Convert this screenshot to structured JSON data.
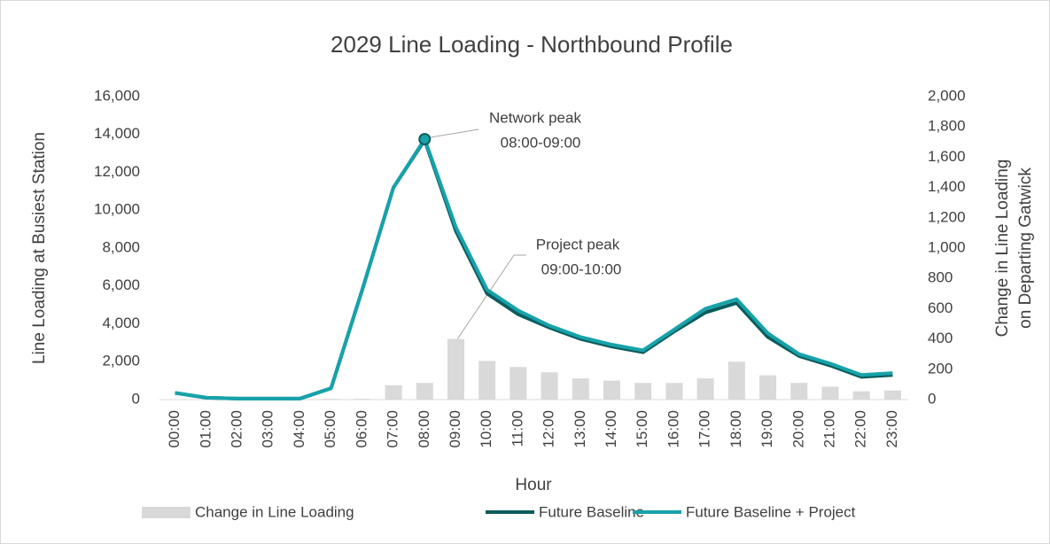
{
  "chart_data": {
    "type": "combo",
    "title": "2029 Line Loading - Northbound Profile",
    "x_label": "Hour",
    "y_label": "Line Loading at Busiest Station",
    "y2_label": [
      "Change in Line Loading",
      "on Departing  Gatwick"
    ],
    "categories": [
      "00:00",
      "01:00",
      "02:00",
      "03:00",
      "04:00",
      "05:00",
      "06:00",
      "07:00",
      "08:00",
      "09:00",
      "10:00",
      "11:00",
      "12:00",
      "13:00",
      "14:00",
      "15:00",
      "16:00",
      "17:00",
      "18:00",
      "19:00",
      "20:00",
      "21:00",
      "22:00",
      "23:00"
    ],
    "series": [
      {
        "name": "Change in Line Loading",
        "type": "bar",
        "axis": "y2",
        "color": "#d9d9d9",
        "values": [
          0,
          0,
          0,
          0,
          0,
          5,
          5,
          95,
          110,
          400,
          255,
          215,
          180,
          140,
          125,
          110,
          110,
          140,
          250,
          160,
          110,
          85,
          55,
          60
        ]
      },
      {
        "name": "Future Baseline",
        "type": "line",
        "axis": "y",
        "color": "#0b5c5c",
        "values": [
          350,
          100,
          50,
          50,
          50,
          600,
          5800,
          11200,
          13700,
          8900,
          5600,
          4500,
          3800,
          3200,
          2800,
          2500,
          3600,
          4600,
          5100,
          3300,
          2300,
          1800,
          1200,
          1300
        ]
      },
      {
        "name": "Future Baseline + Project",
        "type": "line",
        "axis": "y",
        "color": "#17a2aa",
        "values": [
          350,
          100,
          50,
          50,
          50,
          600,
          5800,
          11200,
          13750,
          9100,
          5800,
          4700,
          3900,
          3300,
          2900,
          2600,
          3700,
          4800,
          5300,
          3500,
          2400,
          1900,
          1300,
          1400
        ]
      }
    ],
    "ylim": [
      0,
      16000
    ],
    "yticks": [
      0,
      {
        "value": 2000,
        "label": "2,000"
      },
      {
        "value": 4000,
        "label": "4,000"
      },
      {
        "value": 6000,
        "label": "6,000"
      },
      {
        "value": 8000,
        "label": "8,000"
      },
      {
        "value": 10000,
        "label": "10,000"
      },
      {
        "value": 12000,
        "label": "12,000"
      },
      {
        "value": 14000,
        "label": "14,000"
      },
      {
        "value": 16000,
        "label": "16,000"
      }
    ],
    "y2lim": [
      0,
      2000
    ],
    "y2ticks": [
      0,
      200,
      400,
      600,
      800,
      {
        "value": 1000,
        "label": "1,000"
      },
      {
        "value": 1200,
        "label": "1,200"
      },
      {
        "value": 1400,
        "label": "1,400"
      },
      {
        "value": 1600,
        "label": "1,600"
      },
      {
        "value": 1800,
        "label": "1,800"
      },
      {
        "value": 2000,
        "label": "2,000"
      }
    ],
    "annotations": [
      "Network peak",
      "08:00-09:00",
      "Project peak",
      "09:00-10:00"
    ],
    "legend": "bottom"
  }
}
